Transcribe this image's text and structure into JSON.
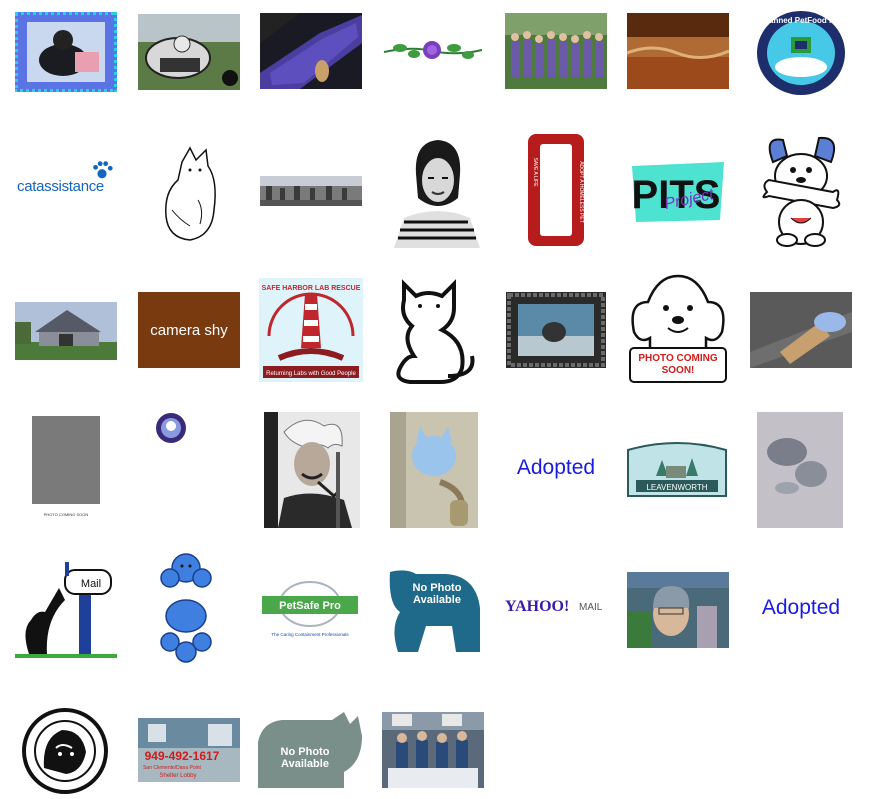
{
  "gallery": {
    "items": [
      {
        "label": "cat photo with blue frame",
        "icon": "cat-photo-icon"
      },
      {
        "label": "kart rider with dog",
        "icon": "kart-photo-icon"
      },
      {
        "label": "cat on carpet",
        "icon": "cat-carpet-icon"
      },
      {
        "label": "purple rose",
        "icon": "rose-icon"
      },
      {
        "label": "group photo",
        "icon": "group-photo-icon"
      },
      {
        "label": "brown field",
        "icon": "field-icon"
      },
      {
        "label": "Planned Petfood Inc",
        "icon": "petfood-logo-icon"
      },
      {
        "label": "catassistance",
        "icon": "catassistance-logo-icon"
      },
      {
        "label": "cat sketch",
        "icon": "cat-sketch-icon"
      },
      {
        "label": "street scene",
        "icon": "street-photo-icon"
      },
      {
        "label": "portrait",
        "icon": "portrait-icon"
      },
      {
        "label": "license frame",
        "icon": "license-frame-icon"
      },
      {
        "label": "PITS Project",
        "icon": "pits-logo-icon"
      },
      {
        "label": "cartoon dog with bone",
        "icon": "cartoon-dog-icon"
      },
      {
        "label": "shelter building",
        "icon": "building-photo-icon"
      },
      {
        "label": "camera shy",
        "icon": "camera-shy-icon"
      },
      {
        "label": "Safe Harbor Lab Rescue",
        "icon": "safe-harbor-logo-icon"
      },
      {
        "label": "cat outline",
        "icon": "cat-outline-icon"
      },
      {
        "label": "framed cat photo",
        "icon": "framed-photo-icon"
      },
      {
        "label": "photo coming soon dog",
        "icon": "photo-coming-soon-icon"
      },
      {
        "label": "hand with tag",
        "icon": "hand-photo-icon"
      },
      {
        "label": "photo coming soon placeholder",
        "icon": "gray-placeholder-icon"
      },
      {
        "label": "small round badge",
        "icon": "round-badge-icon"
      },
      {
        "label": "Einstein with pipe",
        "icon": "einstein-icon"
      },
      {
        "label": "kitten photo",
        "icon": "kitten-photo-icon"
      },
      {
        "label": "Adopted",
        "icon": "adopted-text-icon"
      },
      {
        "label": "Leavenworth",
        "icon": "leavenworth-logo-icon"
      },
      {
        "label": "tags photo",
        "icon": "tags-photo-icon"
      },
      {
        "label": "cat at mailbox",
        "icon": "mailbox-cat-icon"
      },
      {
        "label": "blue poodle",
        "icon": "poodle-icon"
      },
      {
        "label": "PetSafe Pro",
        "icon": "petsafe-logo-icon"
      },
      {
        "label": "No Photo Available dog",
        "icon": "no-photo-dog-icon"
      },
      {
        "label": "Yahoo Mail",
        "icon": "yahoo-mail-icon"
      },
      {
        "label": "smiling person",
        "icon": "person-photo-icon"
      },
      {
        "label": "Adopted",
        "icon": "adopted-text-icon"
      },
      {
        "label": "animal seal",
        "icon": "animal-seal-icon"
      },
      {
        "label": "shelter lobby photo",
        "icon": "shelter-lobby-icon"
      },
      {
        "label": "No Photo Available cat",
        "icon": "no-photo-cat-icon"
      },
      {
        "label": "store event photo",
        "icon": "event-photo-icon"
      }
    ],
    "texts": {
      "catassistance": "catassistance",
      "camera_shy": "camera shy",
      "safe_harbor_arc": "SAFE HARBOR LAB RESCUE",
      "safe_harbor_tagline": "Returning Labs with Good People",
      "pits": "PITS",
      "pits_sub": "Project",
      "photo_coming_soon": "PHOTO COMING SOON!",
      "photo_coming_soon_small": "PHOTO COMING SOON",
      "adopted_1": "Adopted",
      "adopted_2": "Adopted",
      "leavenworth": "LEAVENWORTH",
      "mail": "Mail",
      "petsafe": "PetSafe Pro",
      "petsafe_tagline": "The Caring Containment Professionals",
      "no_photo": "No Photo Available",
      "no_photo_cat": "No Photo Available",
      "yahoo": "YAHOO!",
      "yahoo_mail": "MAIL",
      "phone": "949-492-1617",
      "lobby_line1": "San Clemente/Dana Point",
      "lobby_line2": "Shelter Lobby",
      "planned_petfood": "Planned PetFood Inc",
      "license_left": "SAVE A LIFE",
      "license_right": "ADOPT A HOMELESS PET"
    }
  }
}
